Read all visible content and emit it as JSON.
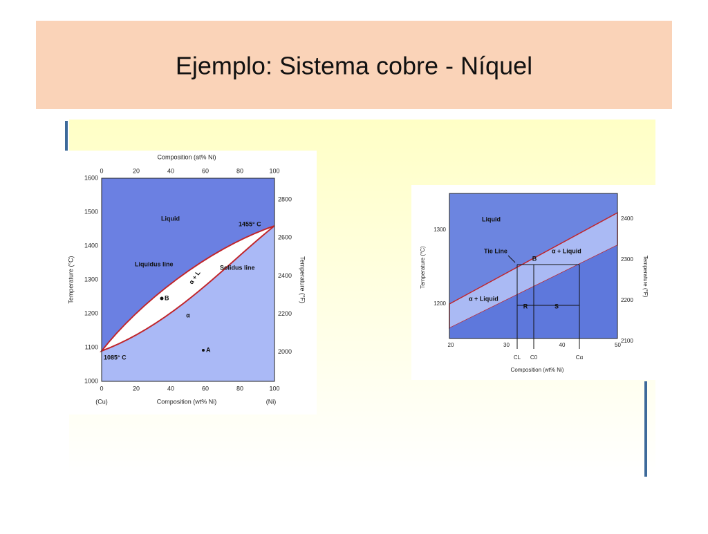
{
  "header": {
    "title": "Ejemplo: Sistema cobre - Níquel"
  },
  "figure_left": {
    "top_axis_label": "Composition (at% Ni)",
    "top_ticks": [
      "0",
      "20",
      "40",
      "60",
      "80",
      "100"
    ],
    "left_axis_label": "Temperature (°C)",
    "left_ticks": [
      "1600",
      "1500",
      "1400",
      "1300",
      "1200",
      "1100",
      "1000"
    ],
    "right_axis_label": "Temperature (°F)",
    "right_ticks": [
      "2800",
      "2600",
      "2400",
      "2200",
      "2000"
    ],
    "bottom_axis_label": "Composition (wt% Ni)",
    "bottom_ticks": [
      "0",
      "20",
      "40",
      "60",
      "80",
      "100"
    ],
    "end_labels": [
      "(Cu)",
      "(Ni)"
    ],
    "annotations": [
      "Liquid",
      "Liquidus line",
      "Solidus line",
      "α + L",
      "α",
      "B",
      "A",
      "1455° C",
      "1085° C"
    ]
  },
  "figure_right": {
    "left_axis_label": "Temperature (°C)",
    "left_ticks": [
      "1300",
      "1200"
    ],
    "right_axis_label": "Temperature (°F)",
    "right_ticks": [
      "2400",
      "2300",
      "2200",
      "2100"
    ],
    "bottom_ticks": [
      "20",
      "30",
      "40",
      "50"
    ],
    "bottom_axis_label": "Composition (wt% Ni)",
    "annotations": [
      "Liquid",
      "Tie Line",
      "B",
      "α + Liquid",
      "α + Liquid",
      "R",
      "S"
    ],
    "markers": [
      "CL",
      "C0",
      "Cα"
    ]
  }
}
